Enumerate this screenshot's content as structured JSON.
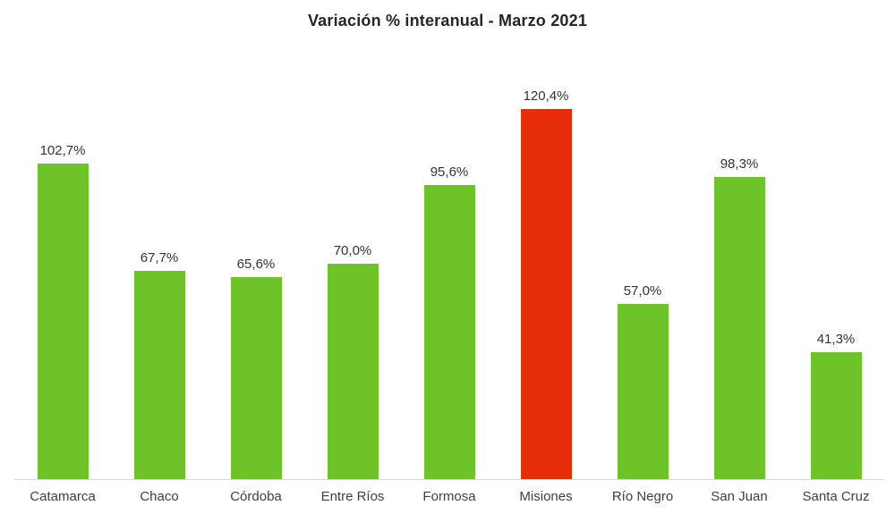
{
  "chart_data": {
    "type": "bar",
    "title": "Variación % interanual - Marzo 2021",
    "categories": [
      "Catamarca",
      "Chaco",
      "Córdoba",
      "Entre Ríos",
      "Formosa",
      "Misiones",
      "Río Negro",
      "San Juan",
      "Santa Cruz"
    ],
    "values": [
      102.7,
      67.7,
      65.6,
      70.0,
      95.6,
      120.4,
      57.0,
      98.3,
      41.3
    ],
    "value_labels": [
      "102,7%",
      "67,7%",
      "65,6%",
      "70,0%",
      "95,6%",
      "120,4%",
      "57,0%",
      "98,3%",
      "41,3%"
    ],
    "bar_colors": [
      "#6ec328",
      "#6ec328",
      "#6ec328",
      "#6ec328",
      "#6ec328",
      "#e62e0b",
      "#6ec328",
      "#6ec328",
      "#6ec328"
    ],
    "xlabel": "",
    "ylabel": "",
    "ylim": [
      0,
      133.5
    ],
    "grid": false,
    "legend": false,
    "axis_line_color": "#d9d9d9",
    "highlight_category": "Misiones",
    "highlight_color": "#e62e0b",
    "default_bar_color": "#6ec328"
  }
}
